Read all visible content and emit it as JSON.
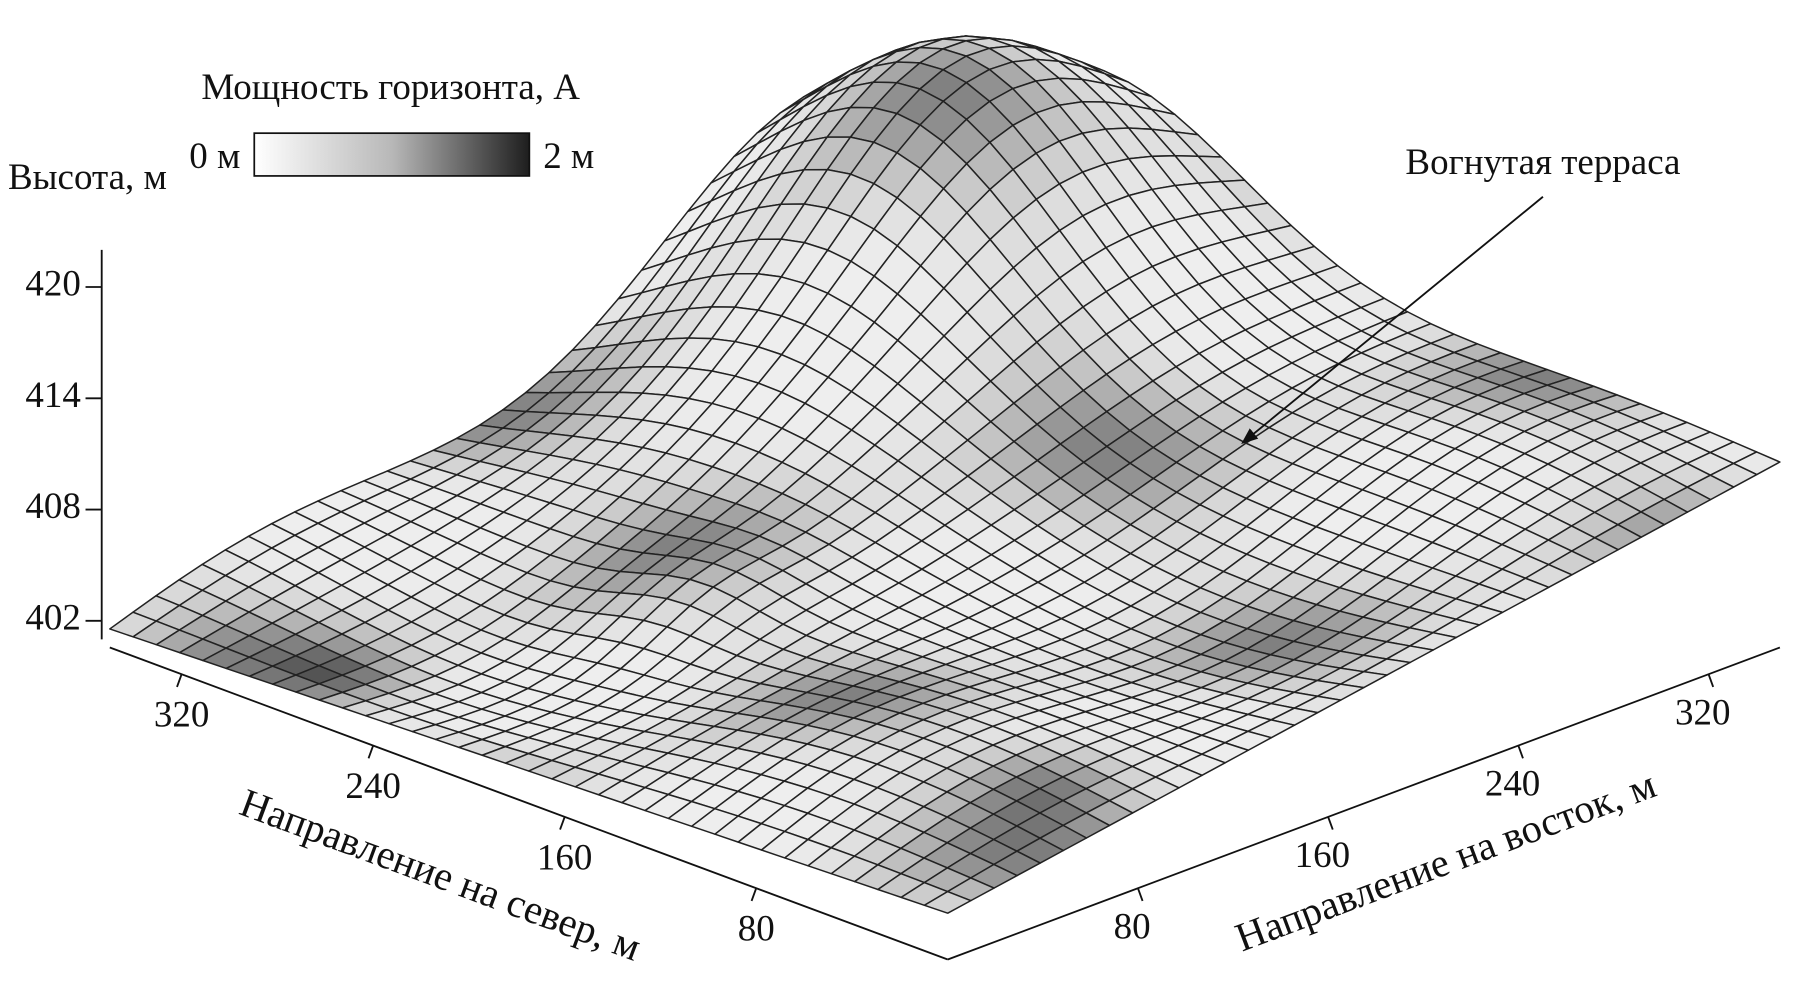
{
  "chart_data": {
    "type": "surface3d",
    "colorbar": {
      "title": "Мощность горизонта, А",
      "lim": [
        0,
        2
      ],
      "ticks": [
        {
          "value": 0,
          "label": "0 м"
        },
        {
          "value": 2,
          "label": "2 м"
        }
      ],
      "colors": [
        "#ffffff",
        "#1e1e1e"
      ]
    },
    "zlabel": "Высота, м",
    "zlim": [
      401,
      422
    ],
    "zticks": [
      402,
      408,
      414,
      420
    ],
    "xlabel": "Направление на север, м",
    "xlim": [
      0,
      350
    ],
    "xticks": [
      80,
      160,
      240,
      320
    ],
    "ylabel": "Направление на восток, м",
    "ylim": [
      0,
      350
    ],
    "yticks": [
      80,
      160,
      240,
      320
    ],
    "annotation": "Вогнутая терраса",
    "mesh_color": "#222222"
  }
}
